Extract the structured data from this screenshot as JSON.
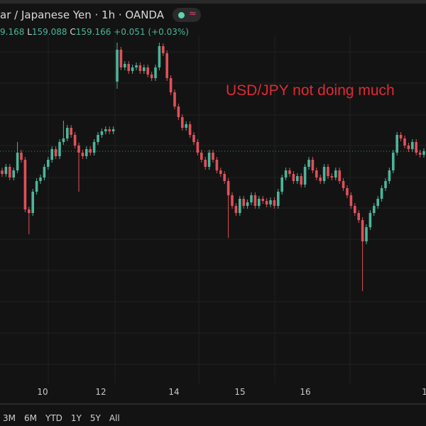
{
  "header": {
    "title": "ar / Japanese Yen · 1h · OANDA",
    "status_icons": [
      "market-open-dot-icon",
      "wave-icon"
    ],
    "wave_glyph": "≈",
    "ohlc": {
      "high_partial": "9.168",
      "low_label": "L",
      "low": "159.088",
      "close_label": "C",
      "close": "159.166",
      "change": "+0.051 (+0.03%)"
    }
  },
  "annotation": {
    "text": "USD/JPY not doing much",
    "color": "#dd2b35"
  },
  "range_buttons": [
    "3M",
    "6M",
    "YTD",
    "1Y",
    "5Y",
    "All"
  ],
  "colors": {
    "background": "#131313",
    "up": "#4cb59a",
    "down": "#e0505a",
    "grid": "#222222",
    "last_price_line": "#4cb59a"
  },
  "chart_data": {
    "type": "candlestick",
    "interval": "1h",
    "x_tick_labels": [
      "10",
      "12",
      "14",
      "15",
      "16",
      "1"
    ],
    "last_price": 159.166,
    "grid": true,
    "close": [
      159.006,
      159.056,
      158.981,
      159.031,
      159.156,
      159.106,
      158.756,
      158.731,
      158.881,
      158.956,
      158.981,
      159.056,
      159.106,
      159.181,
      159.131,
      159.231,
      159.256,
      159.331,
      159.281,
      159.206,
      159.156,
      159.131,
      159.181,
      159.156,
      159.231,
      159.281,
      159.306,
      159.321,
      159.306,
      159.321,
      159.881,
      159.756,
      159.781,
      159.731,
      159.756,
      159.771,
      159.731,
      159.756,
      159.706,
      159.681,
      159.756,
      159.906,
      159.856,
      159.681,
      159.581,
      159.481,
      159.406,
      159.331,
      159.356,
      159.281,
      159.231,
      159.156,
      159.106,
      159.056,
      159.156,
      159.106,
      159.031,
      159.006,
      158.956,
      158.856,
      158.781,
      158.731,
      158.831,
      158.781,
      158.806,
      158.856,
      158.781,
      158.831,
      158.816,
      158.791,
      158.821,
      158.781,
      158.881,
      158.981,
      159.031,
      159.006,
      158.956,
      158.991,
      158.931,
      159.056,
      159.106,
      159.031,
      158.981,
      158.956,
      159.056,
      158.991,
      158.981,
      159.031,
      158.956,
      158.906,
      158.856,
      158.781,
      158.731,
      158.681,
      158.531,
      158.631,
      158.731,
      158.781,
      158.831,
      158.906,
      158.956,
      159.031,
      159.156,
      159.281,
      159.256,
      159.206,
      159.181,
      159.231,
      159.156,
      159.141,
      159.166
    ],
    "first_open": 159.03,
    "overrides": {
      "4": {
        "high": 159.231
      },
      "7": {
        "low": 158.581
      },
      "16": {
        "high": 159.381
      },
      "20": {
        "low": 158.881
      },
      "30": {
        "open": 159.656,
        "high": 159.931,
        "low": 159.606
      },
      "41": {
        "high": 159.931
      },
      "59": {
        "low": 158.556
      },
      "94": {
        "low": 158.181
      }
    }
  }
}
